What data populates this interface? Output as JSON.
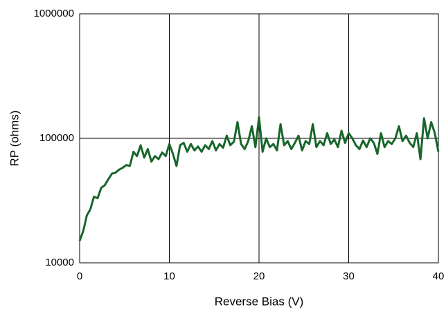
{
  "chart_data": {
    "type": "line",
    "xlabel": "Reverse Bias (V)",
    "ylabel": "RP (ohms)",
    "log_y": true,
    "grid": true,
    "xlim": [
      0,
      40
    ],
    "xticks": [
      0,
      10,
      20,
      30,
      40
    ],
    "ylim": [
      10000,
      1000000
    ],
    "yticks": [
      10000,
      100000,
      1000000
    ],
    "x": [
      0,
      0.4,
      0.8,
      1.2,
      1.6,
      2,
      2.4,
      2.8,
      3.2,
      3.6,
      4,
      4.4,
      4.8,
      5.2,
      5.6,
      6,
      6.4,
      6.8,
      7.2,
      7.6,
      8,
      8.4,
      8.8,
      9.2,
      9.6,
      10,
      10.4,
      10.8,
      11.2,
      11.6,
      12,
      12.4,
      12.8,
      13.2,
      13.6,
      14,
      14.4,
      14.8,
      15.2,
      15.6,
      16,
      16.4,
      16.8,
      17.2,
      17.6,
      18,
      18.4,
      18.8,
      19.2,
      19.6,
      20,
      20.4,
      20.8,
      21.2,
      21.6,
      22,
      22.4,
      22.8,
      23.2,
      23.6,
      24,
      24.4,
      24.8,
      25.2,
      25.6,
      26,
      26.4,
      26.8,
      27.2,
      27.6,
      28,
      28.4,
      28.8,
      29.2,
      29.6,
      30,
      30.4,
      30.8,
      31.2,
      31.6,
      32,
      32.4,
      32.8,
      33.2,
      33.6,
      34,
      34.4,
      34.8,
      35.2,
      35.6,
      36,
      36.4,
      36.8,
      37.2,
      37.6,
      38,
      38.4,
      38.8,
      39.2,
      39.6,
      40
    ],
    "series": [
      {
        "color": "#17662a",
        "values": [
          15000,
          18000,
          24000,
          27000,
          34000,
          33000,
          40000,
          42000,
          47000,
          52000,
          53000,
          56000,
          58000,
          61000,
          60000,
          78000,
          72000,
          88000,
          70000,
          82000,
          65000,
          72000,
          68000,
          77000,
          72000,
          90000,
          75000,
          60000,
          88000,
          92000,
          78000,
          90000,
          80000,
          86000,
          78000,
          88000,
          82000,
          95000,
          80000,
          90000,
          84000,
          105000,
          88000,
          94000,
          135000,
          90000,
          82000,
          95000,
          125000,
          85000,
          148000,
          78000,
          100000,
          85000,
          90000,
          80000,
          130000,
          88000,
          95000,
          82000,
          92000,
          105000,
          80000,
          95000,
          90000,
          130000,
          85000,
          95000,
          88000,
          110000,
          90000,
          98000,
          85000,
          115000,
          92000,
          110000,
          100000,
          88000,
          82000,
          96000,
          85000,
          100000,
          92000,
          75000,
          110000,
          85000,
          95000,
          90000,
          100000,
          125000,
          95000,
          105000,
          92000,
          85000,
          110000,
          68000,
          145000,
          100000,
          135000,
          110000,
          78000
        ]
      }
    ]
  }
}
